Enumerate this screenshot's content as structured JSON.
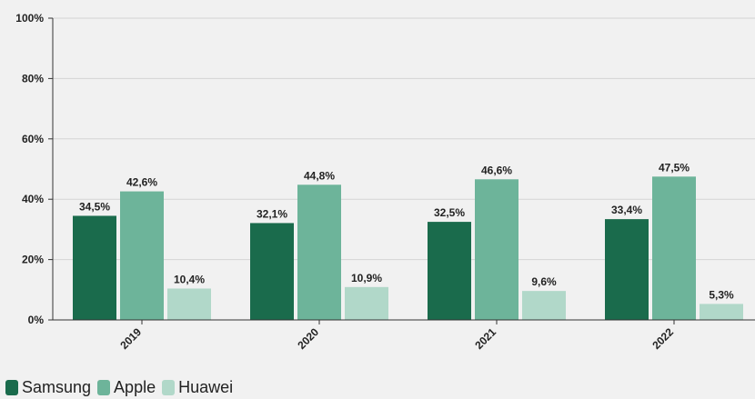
{
  "chart_data": {
    "type": "bar",
    "categories": [
      "2019",
      "2020",
      "2021",
      "2022"
    ],
    "series": [
      {
        "name": "Samsung",
        "values": [
          34.5,
          32.1,
          32.5,
          33.4
        ],
        "labels": [
          "34,5%",
          "32,1%",
          "32,5%",
          "33,4%"
        ],
        "color": "#1a6b4c"
      },
      {
        "name": "Apple",
        "values": [
          42.6,
          44.8,
          46.6,
          47.5
        ],
        "labels": [
          "42,6%",
          "44,8%",
          "46,6%",
          "47,5%"
        ],
        "color": "#6db49a"
      },
      {
        "name": "Huawei",
        "values": [
          10.4,
          10.9,
          9.6,
          5.3
        ],
        "labels": [
          "10,4%",
          "10,9%",
          "9,6%",
          "5,3%"
        ],
        "color": "#b1d8c9"
      }
    ],
    "yticks": [
      0,
      20,
      40,
      60,
      80,
      100
    ],
    "ytick_labels": [
      "0%",
      "20%",
      "40%",
      "60%",
      "80%",
      "100%"
    ],
    "ylim": [
      0,
      100
    ],
    "grid": true,
    "legend_position": "bottom-left"
  }
}
